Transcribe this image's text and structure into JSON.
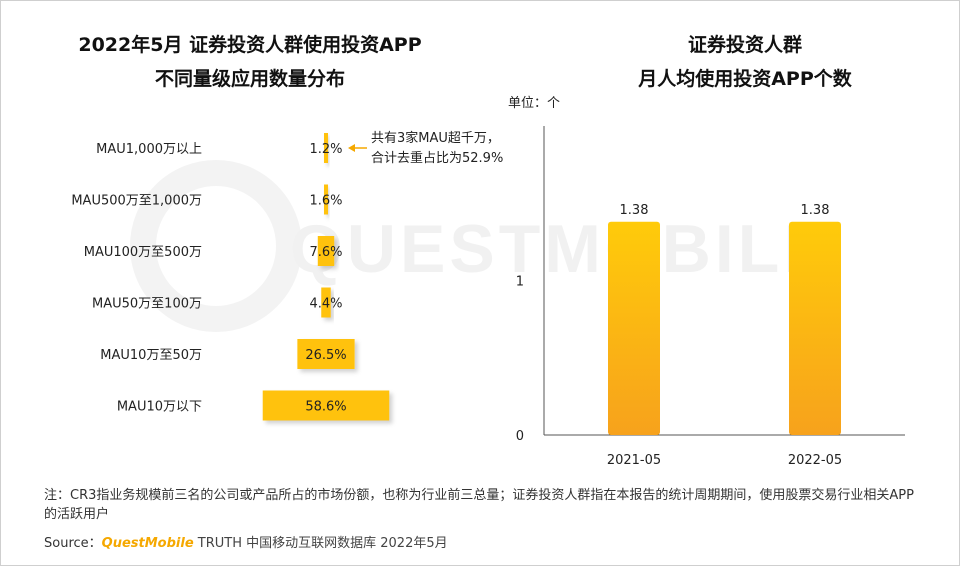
{
  "chart_data": [
    {
      "type": "bar",
      "orientation": "horizontal",
      "title_line1": "2022年5月 证券投资人群使用投资APP",
      "title_line2": "不同量级应用数量分布",
      "categories": [
        "MAU1,000万以上",
        "MAU500万至1,000万",
        "MAU100万至500万",
        "MAU50万至100万",
        "MAU10万至50万",
        "MAU10万以下"
      ],
      "values": [
        1.2,
        1.6,
        7.6,
        4.4,
        26.5,
        58.6
      ],
      "value_labels": [
        "1.2%",
        "1.6%",
        "7.6%",
        "4.4%",
        "26.5%",
        "58.6%"
      ],
      "annotation": [
        "共有3家MAU超千万，",
        "合计去重占比为52.9%"
      ],
      "colors": {
        "bar": "#ffc20e",
        "arrow": "#f5a800"
      }
    },
    {
      "type": "bar",
      "title_line1": "证券投资人群",
      "title_line2": "月人均使用投资APP个数",
      "unit_label": "单位：个",
      "categories": [
        "2021-05",
        "2022-05"
      ],
      "values": [
        1.38,
        1.38
      ],
      "value_labels": [
        "1.38",
        "1.38"
      ],
      "ylim": [
        0,
        2
      ],
      "yticks": [
        0,
        1
      ],
      "colors": {
        "bar_top": "#ffcb0a",
        "bar_bottom": "#f7a21c",
        "axis": "#555555"
      }
    }
  ],
  "watermark": "QUESTMOBILE",
  "footer": {
    "note": "注：CR3指业务规模前三名的公司或产品所占的市场份额，也称为行业前三总量；证券投资人群指在本报告的统计周期期间，使用股票交易行业相关APP的活跃用户",
    "source_label": "Source：",
    "source_brand": "QuestMobile",
    "source_rest": "TRUTH 中国移动互联网数据库 2022年5月"
  }
}
